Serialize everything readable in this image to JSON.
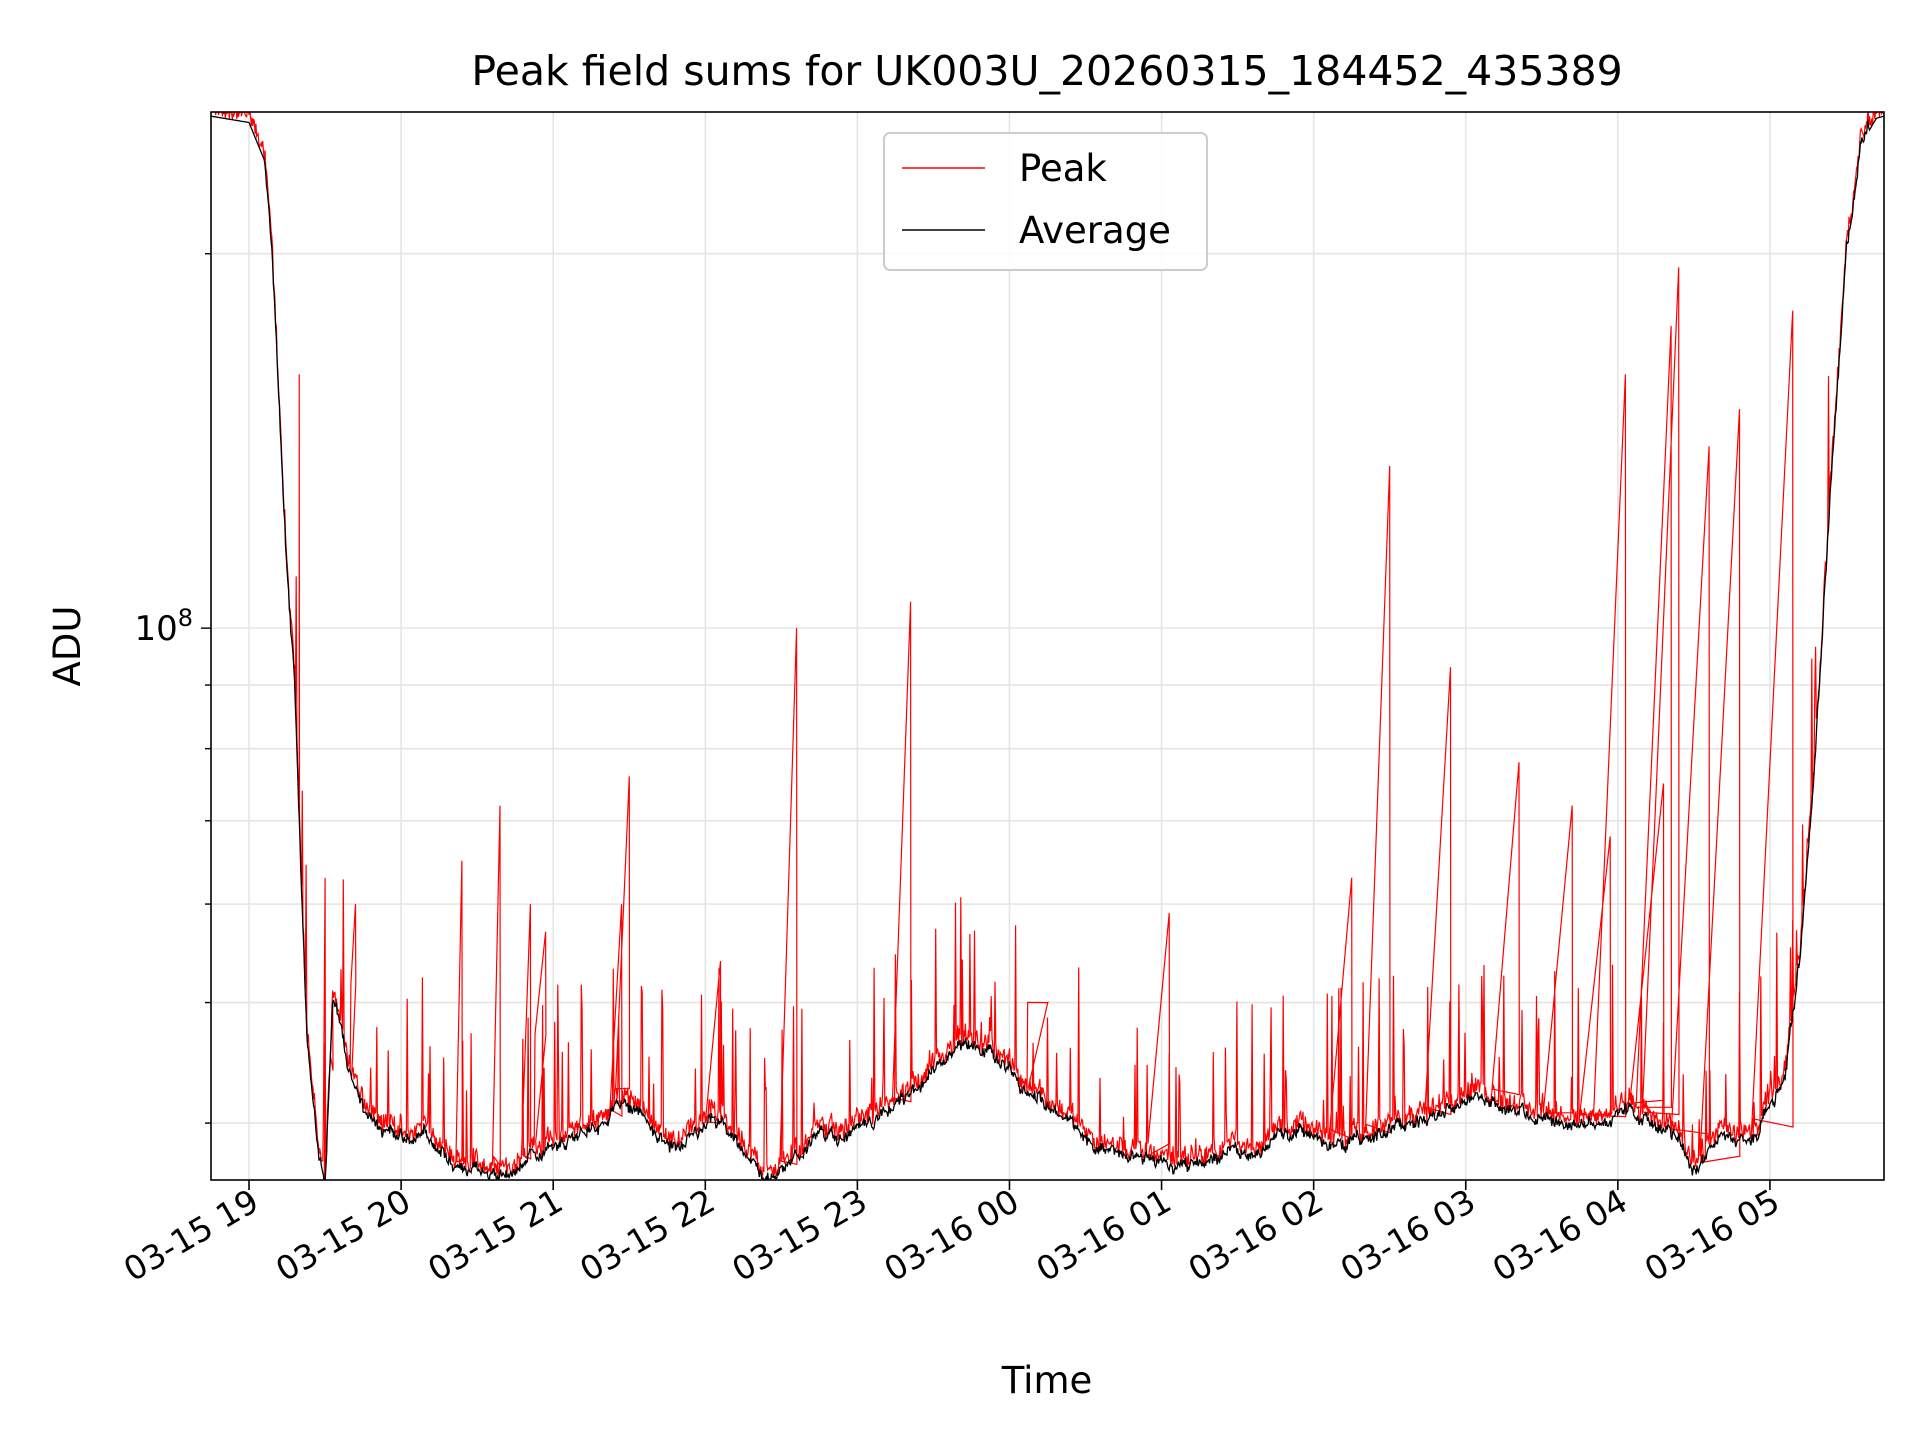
{
  "chart_data": {
    "type": "line",
    "title": "Peak field sums for UK003U_20260315_184452_435389",
    "xlabel": "Time",
    "ylabel": "ADU",
    "yscale": "log",
    "y_tick_label": {
      "base": "10",
      "exp": "8"
    },
    "grid": true,
    "legend_placement": "upper center",
    "x_ticks": [
      "03-15 19",
      "03-15 20",
      "03-15 21",
      "03-15 22",
      "03-15 23",
      "03-16 00",
      "03-16 01",
      "03-16 02",
      "03-16 03",
      "03-16 04",
      "03-16 05"
    ],
    "xlim_hours": [
      -0.25,
      10.75
    ],
    "ylim": [
      36000000,
      260000000
    ],
    "series": [
      {
        "name": "Peak",
        "color": "#ff0000"
      },
      {
        "name": "Average",
        "color": "#000000"
      }
    ],
    "average_anchors": [
      [
        -0.25,
        258000000
      ],
      [
        0.0,
        255000000
      ],
      [
        0.1,
        238000000
      ],
      [
        0.15,
        200000000
      ],
      [
        0.2,
        150000000
      ],
      [
        0.25,
        110000000
      ],
      [
        0.3,
        90000000
      ],
      [
        0.33,
        70000000
      ],
      [
        0.38,
        48000000
      ],
      [
        0.42,
        42000000
      ],
      [
        0.46,
        38000000
      ],
      [
        0.5,
        36000000
      ],
      [
        0.55,
        50000000
      ],
      [
        0.6,
        48000000
      ],
      [
        0.65,
        44000000
      ],
      [
        0.75,
        41000000
      ],
      [
        0.85,
        40000000
      ],
      [
        0.95,
        39500000
      ],
      [
        1.05,
        38500000
      ],
      [
        1.15,
        39500000
      ],
      [
        1.25,
        38000000
      ],
      [
        1.35,
        37000000
      ],
      [
        1.45,
        36800000
      ],
      [
        1.55,
        36500000
      ],
      [
        1.65,
        36300000
      ],
      [
        1.75,
        36700000
      ],
      [
        1.85,
        37500000
      ],
      [
        1.95,
        38000000
      ],
      [
        2.05,
        38500000
      ],
      [
        2.15,
        39000000
      ],
      [
        2.25,
        39500000
      ],
      [
        2.35,
        40500000
      ],
      [
        2.45,
        41500000
      ],
      [
        2.55,
        41000000
      ],
      [
        2.65,
        39500000
      ],
      [
        2.75,
        38000000
      ],
      [
        2.85,
        38200000
      ],
      [
        2.95,
        39000000
      ],
      [
        3.05,
        40500000
      ],
      [
        3.15,
        39500000
      ],
      [
        3.25,
        37500000
      ],
      [
        3.35,
        36600000
      ],
      [
        3.45,
        36300000
      ],
      [
        3.55,
        37000000
      ],
      [
        3.65,
        38000000
      ],
      [
        3.75,
        39300000
      ],
      [
        3.85,
        39000000
      ],
      [
        3.95,
        39000000
      ],
      [
        4.05,
        40000000
      ],
      [
        4.15,
        40500000
      ],
      [
        4.25,
        41500000
      ],
      [
        4.35,
        42000000
      ],
      [
        4.45,
        43500000
      ],
      [
        4.55,
        45000000
      ],
      [
        4.65,
        46000000
      ],
      [
        4.75,
        46000000
      ],
      [
        4.85,
        45500000
      ],
      [
        4.95,
        45000000
      ],
      [
        5.0,
        44000000
      ],
      [
        5.05,
        43000000
      ],
      [
        5.1,
        42500000
      ],
      [
        5.2,
        42000000
      ],
      [
        5.3,
        41000000
      ],
      [
        5.45,
        39500000
      ],
      [
        5.55,
        38500000
      ],
      [
        5.7,
        38000000
      ],
      [
        5.85,
        37500000
      ],
      [
        6.0,
        37300000
      ],
      [
        6.15,
        37000000
      ],
      [
        6.3,
        37300000
      ],
      [
        6.45,
        37800000
      ],
      [
        6.6,
        38000000
      ],
      [
        6.75,
        39000000
      ],
      [
        6.9,
        39300000
      ],
      [
        7.05,
        38500000
      ],
      [
        7.2,
        38800000
      ],
      [
        7.35,
        39000000
      ],
      [
        7.5,
        39500000
      ],
      [
        7.65,
        40000000
      ],
      [
        7.8,
        40500000
      ],
      [
        7.9,
        41500000
      ],
      [
        8.05,
        42000000
      ],
      [
        8.15,
        41500000
      ],
      [
        8.3,
        41000000
      ],
      [
        8.45,
        40500000
      ],
      [
        8.6,
        40000000
      ],
      [
        8.75,
        40000000
      ],
      [
        8.9,
        40000000
      ],
      [
        9.0,
        40500000
      ],
      [
        9.1,
        41000000
      ],
      [
        9.2,
        40000000
      ],
      [
        9.3,
        39500000
      ],
      [
        9.4,
        39000000
      ],
      [
        9.45,
        37500000
      ],
      [
        9.5,
        36800000
      ],
      [
        9.55,
        37500000
      ],
      [
        9.6,
        38000000
      ],
      [
        9.7,
        39000000
      ],
      [
        9.8,
        38700000
      ],
      [
        9.9,
        39000000
      ],
      [
        10.0,
        41000000
      ],
      [
        10.1,
        44000000
      ],
      [
        10.2,
        55000000
      ],
      [
        10.3,
        80000000
      ],
      [
        10.4,
        130000000
      ],
      [
        10.5,
        200000000
      ],
      [
        10.6,
        245000000
      ],
      [
        10.7,
        257000000
      ],
      [
        10.75,
        258000000
      ]
    ],
    "peak_spikes": [
      [
        0.33,
        160000000
      ],
      [
        0.5,
        63000000
      ],
      [
        0.55,
        50000000
      ],
      [
        0.7,
        60000000
      ],
      [
        1.4,
        65000000
      ],
      [
        1.65,
        72000000
      ],
      [
        1.85,
        60000000
      ],
      [
        1.95,
        57000000
      ],
      [
        2.45,
        60000000
      ],
      [
        2.5,
        76000000
      ],
      [
        3.1,
        54000000
      ],
      [
        3.6,
        100000000
      ],
      [
        4.35,
        105000000
      ],
      [
        5.25,
        50000000
      ],
      [
        6.05,
        59000000
      ],
      [
        7.25,
        63000000
      ],
      [
        7.5,
        135000000
      ],
      [
        7.9,
        93000000
      ],
      [
        8.35,
        78000000
      ],
      [
        8.7,
        72000000
      ],
      [
        8.95,
        68000000
      ],
      [
        9.05,
        160000000
      ],
      [
        9.3,
        75000000
      ],
      [
        9.35,
        175000000
      ],
      [
        9.4,
        195000000
      ],
      [
        9.6,
        140000000
      ],
      [
        9.8,
        150000000
      ],
      [
        10.15,
        180000000
      ]
    ]
  }
}
